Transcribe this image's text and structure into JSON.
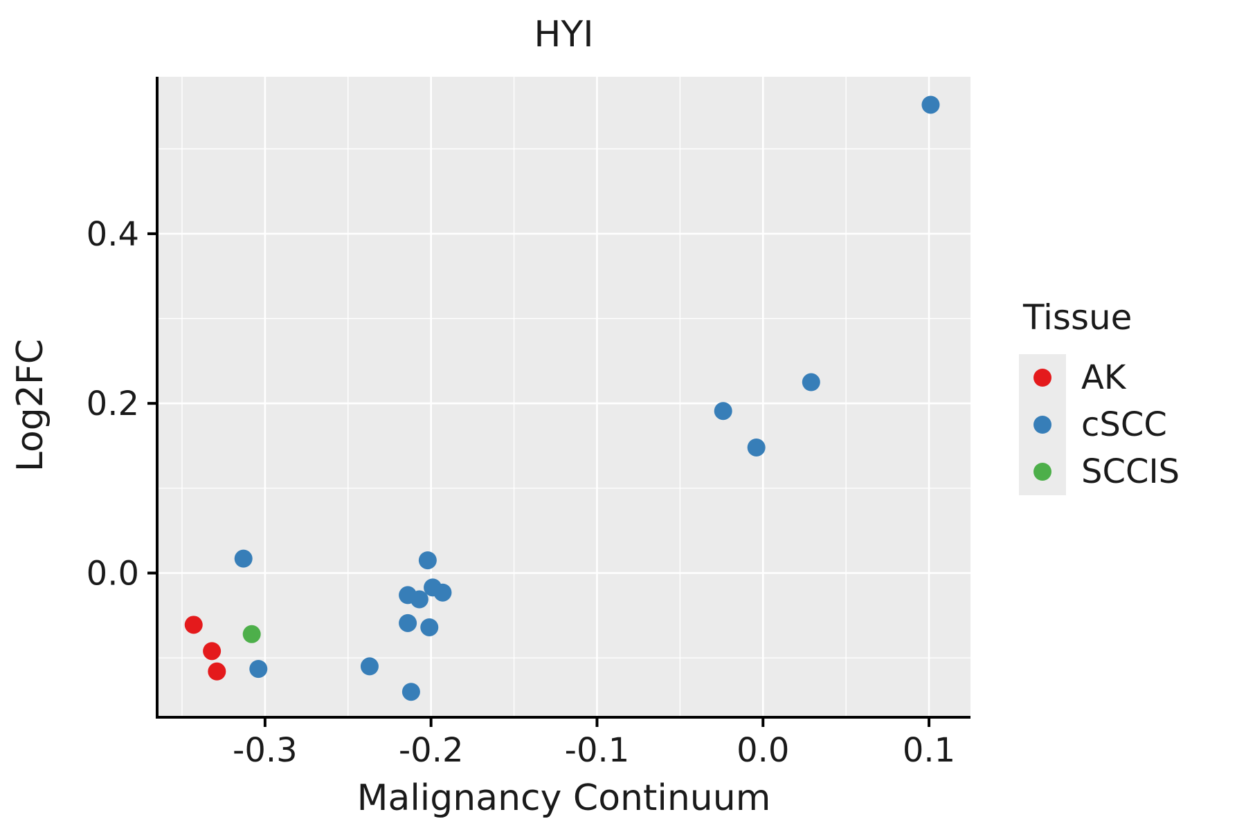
{
  "chart_data": {
    "type": "scatter",
    "title": "HYI",
    "xlabel": "Malignancy Continuum",
    "ylabel": "Log2FC",
    "legend_title": "Tissue",
    "legend_position": "right",
    "grid": true,
    "panel_bg": "#EBEBEB",
    "grid_color": "#FFFFFF",
    "axis_color": "#000000",
    "text_color": "#1a1a1a",
    "xlim": [
      -0.365,
      0.125
    ],
    "ylim": [
      -0.17,
      0.585
    ],
    "xticks": {
      "values": [
        -0.3,
        -0.2,
        -0.1,
        0.0,
        0.1
      ],
      "labels": [
        "-0.3",
        "-0.2",
        "-0.1",
        "0.0",
        "0.1"
      ]
    },
    "yticks": {
      "values": [
        0.0,
        0.2,
        0.4
      ],
      "labels": [
        "0.0",
        "0.2",
        "0.4"
      ]
    },
    "xminor": [
      -0.35,
      -0.25,
      -0.15,
      -0.05,
      0.05
    ],
    "yminor": [
      -0.1,
      0.1,
      0.3,
      0.5
    ],
    "series": [
      {
        "name": "AK",
        "color": "#E41A1C",
        "points": [
          [
            -0.343,
            -0.061
          ],
          [
            -0.332,
            -0.092
          ],
          [
            -0.329,
            -0.116
          ]
        ]
      },
      {
        "name": "cSCC",
        "color": "#377EB8",
        "points": [
          [
            0.101,
            0.552
          ],
          [
            0.029,
            0.225
          ],
          [
            -0.024,
            0.191
          ],
          [
            -0.004,
            0.148
          ],
          [
            -0.313,
            0.017
          ],
          [
            -0.202,
            0.015
          ],
          [
            -0.214,
            -0.026
          ],
          [
            -0.207,
            -0.031
          ],
          [
            -0.199,
            -0.017
          ],
          [
            -0.193,
            -0.023
          ],
          [
            -0.214,
            -0.059
          ],
          [
            -0.201,
            -0.064
          ],
          [
            -0.304,
            -0.113
          ],
          [
            -0.237,
            -0.11
          ],
          [
            -0.212,
            -0.14
          ]
        ]
      },
      {
        "name": "SCCIS",
        "color": "#4DAF4A",
        "points": [
          [
            -0.308,
            -0.072
          ]
        ]
      }
    ]
  }
}
